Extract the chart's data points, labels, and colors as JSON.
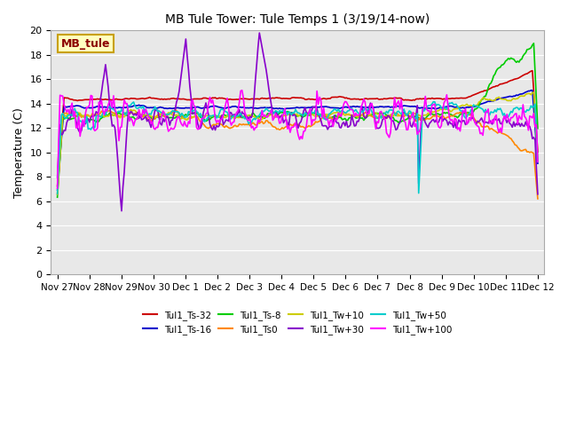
{
  "title": "MB Tule Tower: Tule Temps 1 (3/19/14-now)",
  "ylabel": "Temperature (C)",
  "xlabel": "",
  "ylim": [
    0,
    20
  ],
  "yticks": [
    0,
    2,
    4,
    6,
    8,
    10,
    12,
    14,
    16,
    18,
    20
  ],
  "bg_color": "#e8e8e8",
  "fig_color": "#ffffff",
  "box_label": "MB_tule",
  "box_facecolor": "#ffffc0",
  "box_edgecolor": "#c8a000",
  "box_textcolor": "#8b0000",
  "series": [
    {
      "name": "Tul1_Ts-32",
      "color": "#cc0000",
      "lw": 1.2
    },
    {
      "name": "Tul1_Ts-16",
      "color": "#0000cc",
      "lw": 1.2
    },
    {
      "name": "Tul1_Ts-8",
      "color": "#00cc00",
      "lw": 1.2
    },
    {
      "name": "Tul1_Ts0",
      "color": "#ff8800",
      "lw": 1.2
    },
    {
      "name": "Tul1_Tw+10",
      "color": "#cccc00",
      "lw": 1.2
    },
    {
      "name": "Tul1_Tw+30",
      "color": "#8800cc",
      "lw": 1.2
    },
    {
      "name": "Tul1_Tw+50",
      "color": "#00cccc",
      "lw": 1.2
    },
    {
      "name": "Tul1_Tw+100",
      "color": "#ff00ff",
      "lw": 1.2
    }
  ],
  "n_points": 360,
  "x_tick_labels": [
    "Nov 27",
    "Nov 28",
    "Nov 29",
    "Nov 30",
    "Dec 1",
    "Dec 2",
    "Dec 3",
    "Dec 4",
    "Dec 5",
    "Dec 6",
    "Dec 7",
    "Dec 8",
    "Dec 9",
    "Dec 10",
    "Dec 11",
    "Dec 12"
  ],
  "x_tick_positions": [
    0,
    1,
    2,
    3,
    4,
    5,
    6,
    7,
    8,
    9,
    10,
    11,
    12,
    13,
    14,
    15
  ]
}
